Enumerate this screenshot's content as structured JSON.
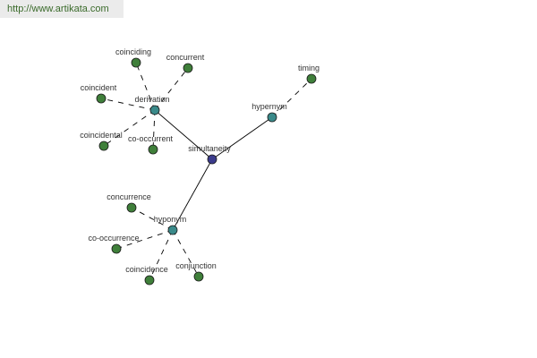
{
  "watermark": "http://www.artikata.com",
  "colors": {
    "center": "#3b3b8c",
    "relation": "#3a8a8a",
    "term": "#3f7f3a",
    "edge": "#000000"
  },
  "nodes": [
    {
      "id": "simultaneity",
      "kind": "center"
    },
    {
      "id": "derivation",
      "kind": "relation"
    },
    {
      "id": "hypernym",
      "kind": "relation"
    },
    {
      "id": "hyponym",
      "kind": "relation"
    },
    {
      "id": "timing",
      "kind": "term"
    },
    {
      "id": "coinciding",
      "kind": "term"
    },
    {
      "id": "concurrent",
      "kind": "term"
    },
    {
      "id": "coincident",
      "kind": "term"
    },
    {
      "id": "coincidental",
      "kind": "term"
    },
    {
      "id": "co-occurrent",
      "kind": "term"
    },
    {
      "id": "concurrence",
      "kind": "term"
    },
    {
      "id": "co-occurrence",
      "kind": "term"
    },
    {
      "id": "coincidence",
      "kind": "term"
    },
    {
      "id": "conjunction",
      "kind": "term"
    }
  ],
  "edges": [
    {
      "from": "simultaneity",
      "to": "derivation",
      "style": "solid"
    },
    {
      "from": "simultaneity",
      "to": "hypernym",
      "style": "solid"
    },
    {
      "from": "simultaneity",
      "to": "hyponym",
      "style": "solid"
    },
    {
      "from": "hypernym",
      "to": "timing",
      "style": "dashed"
    },
    {
      "from": "derivation",
      "to": "coinciding",
      "style": "dashed"
    },
    {
      "from": "derivation",
      "to": "concurrent",
      "style": "dashed"
    },
    {
      "from": "derivation",
      "to": "coincident",
      "style": "dashed"
    },
    {
      "from": "derivation",
      "to": "coincidental",
      "style": "dashed"
    },
    {
      "from": "derivation",
      "to": "co-occurrent",
      "style": "dashed"
    },
    {
      "from": "hyponym",
      "to": "concurrence",
      "style": "dashed"
    },
    {
      "from": "hyponym",
      "to": "co-occurrence",
      "style": "dashed"
    },
    {
      "from": "hyponym",
      "to": "coincidence",
      "style": "dashed"
    },
    {
      "from": "hyponym",
      "to": "conjunction",
      "style": "dashed"
    }
  ]
}
